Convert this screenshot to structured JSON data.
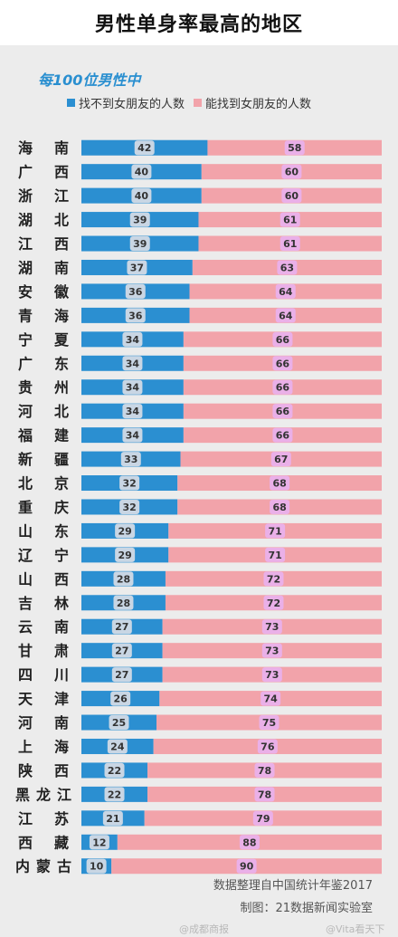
{
  "title": "男性单身率最高的地区",
  "colors": {
    "single": "#2b8fd1",
    "partnered": "#f2a3aa",
    "panel": "#ececec",
    "pill_single": "#c9d6e4",
    "pill_partnered": "#eab0e8"
  },
  "chart_data": {
    "type": "bar",
    "orientation": "horizontal",
    "stacked": true,
    "title": "每100位男性中",
    "categories": [
      "海 南",
      "广 西",
      "浙 江",
      "湖 北",
      "江 西",
      "湖 南",
      "安 徽",
      "青 海",
      "宁 夏",
      "广 东",
      "贵 州",
      "河 北",
      "福 建",
      "新 疆",
      "北 京",
      "重 庆",
      "山 东",
      "辽 宁",
      "山 西",
      "吉 林",
      "云 南",
      "甘 肃",
      "四 川",
      "天 津",
      "河 南",
      "上 海",
      "陕 西",
      "黑龙江",
      "江 苏",
      "西 藏",
      "内蒙古"
    ],
    "series": [
      {
        "name": "找不到女朋友的人数",
        "values": [
          42,
          40,
          40,
          39,
          39,
          37,
          36,
          36,
          34,
          34,
          34,
          34,
          34,
          33,
          32,
          32,
          29,
          29,
          28,
          28,
          27,
          27,
          27,
          26,
          25,
          24,
          22,
          22,
          21,
          12,
          10
        ]
      },
      {
        "name": "能找到女朋友的人数",
        "values": [
          58,
          60,
          60,
          61,
          61,
          63,
          64,
          64,
          66,
          66,
          66,
          66,
          66,
          67,
          68,
          68,
          71,
          71,
          72,
          72,
          73,
          73,
          73,
          74,
          75,
          76,
          78,
          78,
          79,
          88,
          90
        ]
      }
    ],
    "xlim": [
      0,
      100
    ],
    "legend_position": "top"
  },
  "footer": {
    "source": "数据整理自中国统计年鉴2017",
    "credit": "制图：21数据新闻实验室"
  },
  "watermarks": [
    "@成都商报",
    "@Vita看天下"
  ]
}
